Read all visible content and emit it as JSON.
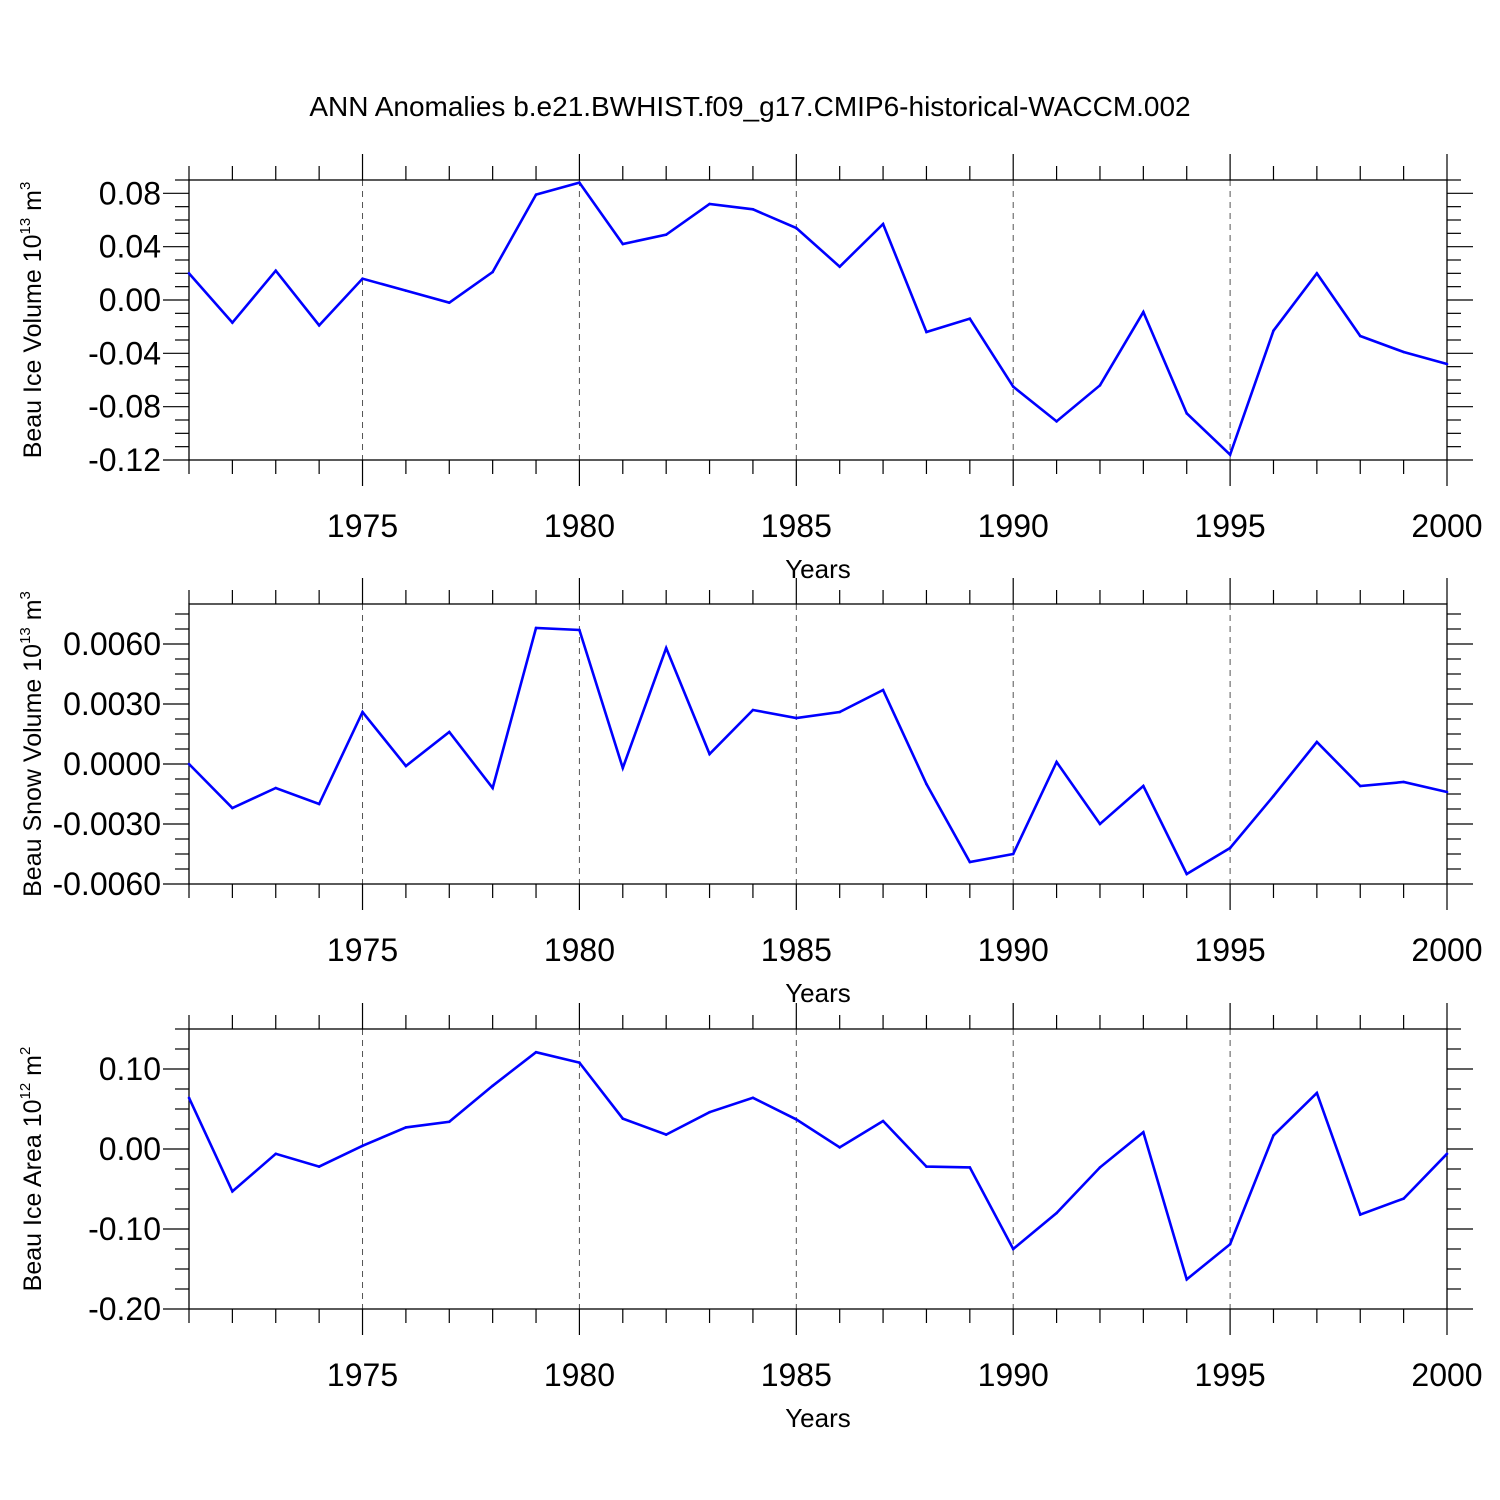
{
  "figure_title": "ANN Anomalies b.e21.BWHIST.f09_g17.CMIP6-historical-WACCM.002",
  "colors": {
    "line": "#0000ff",
    "frame": "#000000",
    "grid": "#555555"
  },
  "chart_data": [
    {
      "type": "line",
      "ylabel": {
        "base": "Beau Ice Volume 10",
        "exp": "13",
        "unit": " m",
        "unit_exp": "3"
      },
      "xlabel": "Years",
      "xlim": [
        1971,
        2000
      ],
      "ylim": [
        -0.12,
        0.09
      ],
      "yticks": [
        -0.12,
        -0.08,
        -0.04,
        0.0,
        0.04,
        0.08
      ],
      "ytick_labels": [
        "-0.12",
        "-0.08",
        "-0.04",
        "0.00",
        "0.04",
        "0.08"
      ],
      "xticks": [
        1975,
        1980,
        1985,
        1990,
        1995,
        2000
      ],
      "xtick_labels": [
        "1975",
        "1980",
        "1985",
        "1990",
        "1995",
        "2000"
      ],
      "grid": "vertical dashed at major x ticks",
      "x": [
        1971,
        1972,
        1973,
        1974,
        1975,
        1976,
        1977,
        1978,
        1979,
        1980,
        1981,
        1982,
        1983,
        1984,
        1985,
        1986,
        1987,
        1988,
        1989,
        1990,
        1991,
        1992,
        1993,
        1994,
        1995,
        1996,
        1997,
        1998,
        1999,
        2000
      ],
      "values": [
        0.02,
        -0.017,
        0.022,
        -0.019,
        0.016,
        0.007,
        -0.002,
        0.021,
        0.079,
        0.088,
        0.042,
        0.049,
        0.072,
        0.068,
        0.054,
        0.025,
        0.057,
        -0.024,
        -0.014,
        -0.065,
        -0.091,
        -0.064,
        -0.009,
        -0.085,
        -0.116,
        -0.023,
        0.02,
        -0.027,
        -0.039,
        -0.048
      ]
    },
    {
      "type": "line",
      "ylabel": {
        "base": "Beau Snow Volume 10",
        "exp": "13",
        "unit": " m",
        "unit_exp": "3"
      },
      "xlabel": "Years",
      "xlim": [
        1971,
        2000
      ],
      "ylim": [
        -0.006,
        0.008
      ],
      "yticks": [
        -0.006,
        -0.003,
        0.0,
        0.003,
        0.006
      ],
      "ytick_labels": [
        "-0.0060",
        "-0.0030",
        "0.0000",
        "0.0030",
        "0.0060"
      ],
      "xticks": [
        1975,
        1980,
        1985,
        1990,
        1995,
        2000
      ],
      "xtick_labels": [
        "1975",
        "1980",
        "1985",
        "1990",
        "1995",
        "2000"
      ],
      "grid": "vertical dashed at major x ticks",
      "x": [
        1971,
        1972,
        1973,
        1974,
        1975,
        1976,
        1977,
        1978,
        1979,
        1980,
        1981,
        1982,
        1983,
        1984,
        1985,
        1986,
        1987,
        1988,
        1989,
        1990,
        1991,
        1992,
        1993,
        1994,
        1995,
        1996,
        1997,
        1998,
        1999,
        2000
      ],
      "values": [
        0.0,
        -0.0022,
        -0.0012,
        -0.002,
        0.0026,
        -0.0001,
        0.0016,
        -0.0012,
        0.0068,
        0.0067,
        -0.0002,
        0.0058,
        0.0005,
        0.0027,
        0.0023,
        0.0026,
        0.0037,
        -0.001,
        -0.0049,
        -0.0045,
        0.0001,
        -0.003,
        -0.0011,
        -0.0055,
        -0.0042,
        -0.0016,
        0.0011,
        -0.0011,
        -0.0009,
        -0.0014
      ]
    },
    {
      "type": "line",
      "ylabel": {
        "base": "Beau Ice Area 10",
        "exp": "12",
        "unit": " m",
        "unit_exp": "2"
      },
      "xlabel": "Years",
      "xlim": [
        1971,
        2000
      ],
      "ylim": [
        -0.2,
        0.15
      ],
      "yticks": [
        -0.2,
        -0.1,
        0.0,
        0.1
      ],
      "ytick_labels": [
        "-0.20",
        "-0.10",
        "0.00",
        "0.10"
      ],
      "xticks": [
        1975,
        1980,
        1985,
        1990,
        1995,
        2000
      ],
      "xtick_labels": [
        "1975",
        "1980",
        "1985",
        "1990",
        "1995",
        "2000"
      ],
      "grid": "vertical dashed at major x ticks",
      "x": [
        1971,
        1972,
        1973,
        1974,
        1975,
        1976,
        1977,
        1978,
        1979,
        1980,
        1981,
        1982,
        1983,
        1984,
        1985,
        1986,
        1987,
        1988,
        1989,
        1990,
        1991,
        1992,
        1993,
        1994,
        1995,
        1996,
        1997,
        1998,
        1999,
        2000
      ],
      "values": [
        0.064,
        -0.053,
        -0.006,
        -0.022,
        0.004,
        0.027,
        0.034,
        0.079,
        0.121,
        0.108,
        0.038,
        0.018,
        0.046,
        0.064,
        0.037,
        0.002,
        0.035,
        -0.022,
        -0.023,
        -0.125,
        -0.08,
        -0.023,
        0.021,
        -0.163,
        -0.119,
        0.017,
        0.07,
        -0.082,
        -0.062,
        -0.006
      ]
    }
  ]
}
